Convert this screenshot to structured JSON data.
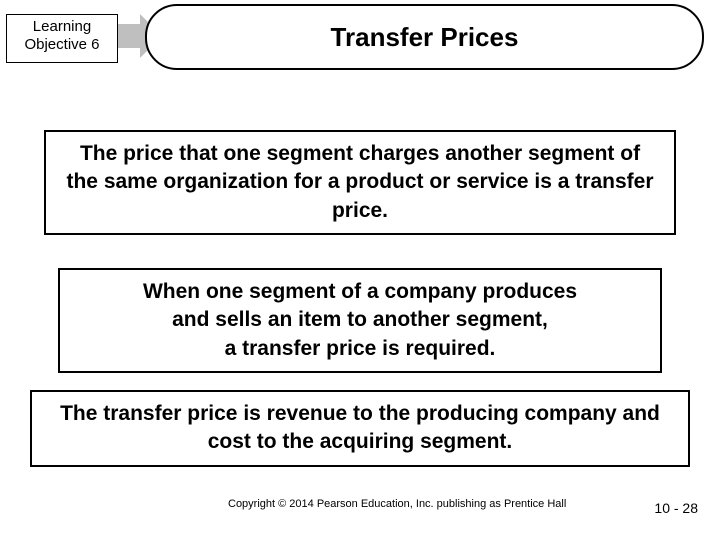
{
  "lo": {
    "line1": "Learning",
    "line2": "Objective 6"
  },
  "title": "Transfer Prices",
  "box1": "The price that one segment charges another segment of the same organization for a product or service is a transfer price.",
  "box2_l1": "When one segment of a company produces",
  "box2_l2": "and sells an item to another segment,",
  "box2_l3": "a transfer price is required.",
  "box3": "The transfer price is revenue to the producing company and cost to the acquiring segment.",
  "copyright": "Copyright © 2014 Pearson Education, Inc. publishing as Prentice Hall",
  "page": "10 - 28"
}
